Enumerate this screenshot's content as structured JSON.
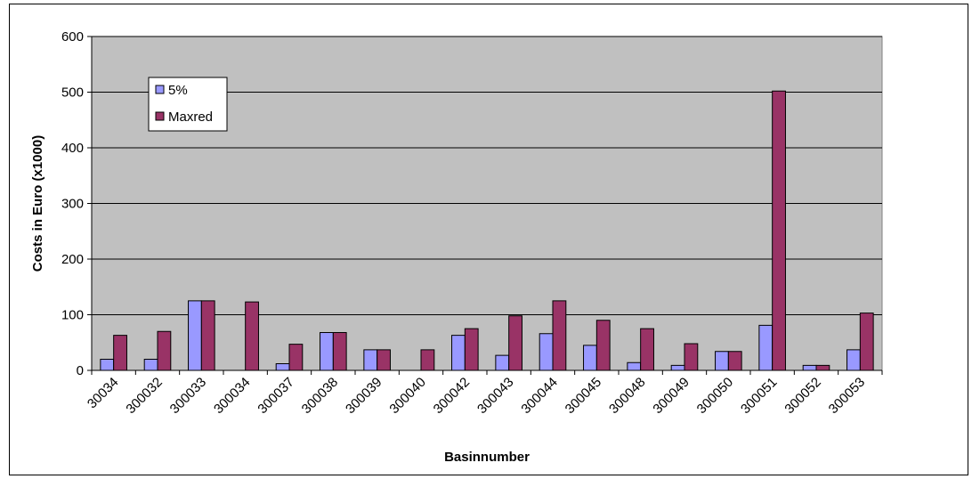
{
  "chart_data": {
    "type": "bar",
    "title": "",
    "xlabel": "Basinnumber",
    "ylabel": "Costs in Euro (x1000)",
    "ylim": [
      0,
      600
    ],
    "yticks": [
      0,
      100,
      200,
      300,
      400,
      500,
      600
    ],
    "grid": true,
    "legend_position": "top-left",
    "categories": [
      "30034",
      "300032",
      "300033",
      "300034",
      "300037",
      "300038",
      "300039",
      "300040",
      "300042",
      "300043",
      "300044",
      "300045",
      "300048",
      "300049",
      "300050",
      "300051",
      "300052",
      "300053"
    ],
    "series": [
      {
        "name": "5%",
        "color": "#9999ff",
        "values": [
          20,
          20,
          125,
          0,
          12,
          68,
          37,
          0,
          63,
          27,
          66,
          45,
          14,
          9,
          34,
          81,
          9,
          37
        ]
      },
      {
        "name": "Maxred",
        "color": "#993366",
        "values": [
          63,
          70,
          125,
          123,
          47,
          68,
          37,
          37,
          75,
          98,
          125,
          90,
          75,
          48,
          34,
          502,
          9,
          103
        ]
      }
    ]
  }
}
